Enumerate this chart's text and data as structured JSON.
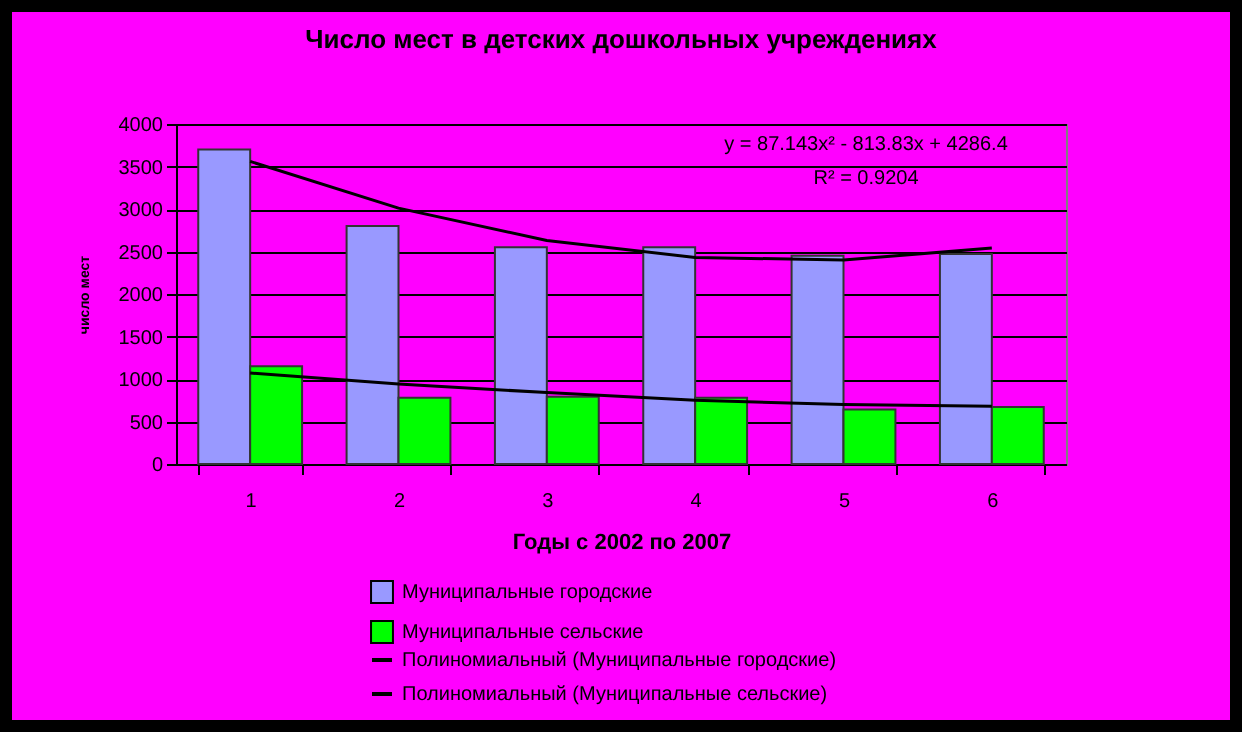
{
  "chart_data": {
    "type": "bar",
    "title": "Число мест в детских дошкольных учреждениях",
    "xlabel": "Годы с 2002 по 2007",
    "ylabel": "число мест",
    "categories": [
      "1",
      "2",
      "3",
      "4",
      "5",
      "6"
    ],
    "series": [
      {
        "name": "Муниципальные городские",
        "color": "#9999ff",
        "values": [
          3700,
          2800,
          2550,
          2550,
          2450,
          2470
        ]
      },
      {
        "name": "Муниципальные сельские",
        "color": "#00ff00",
        "values": [
          1150,
          780,
          790,
          780,
          640,
          670
        ]
      },
      {
        "name": "Полиномиальный (Муниципальные городские)",
        "type": "line",
        "color": "#000000",
        "x": [
          "1",
          "2",
          "3",
          "4",
          "5",
          "6"
        ],
        "values": [
          3560,
          3010,
          2630,
          2430,
          2400,
          2540
        ]
      },
      {
        "name": "Полиномиальный (Муниципальные сельские)",
        "type": "line",
        "color": "#000000",
        "x": [
          "1",
          "2",
          "3",
          "4",
          "5",
          "6"
        ],
        "values": [
          1070,
          940,
          840,
          750,
          700,
          680
        ]
      }
    ],
    "ylim": [
      0,
      4000
    ],
    "yticks": [
      0,
      500,
      1000,
      1500,
      2000,
      2500,
      3000,
      3500,
      4000
    ],
    "grid": "y",
    "legend": "bottom",
    "annotations": [
      "y = 87.143x² - 813.83x + 4286.4",
      "R² = 0.9204"
    ]
  }
}
